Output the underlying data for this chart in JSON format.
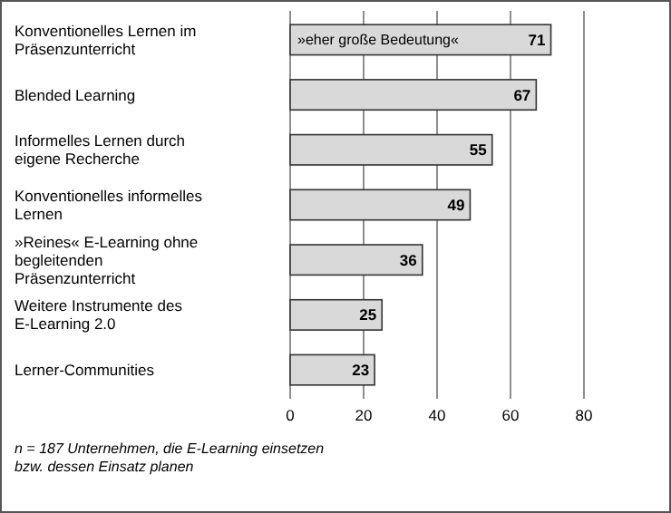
{
  "chart_data": {
    "type": "bar",
    "orientation": "horizontal",
    "categories": [
      "Konventionelles Lernen im Präsenzunterricht",
      "Blended Learning",
      "Informelles Lernen durch eigene Recherche",
      "Konventionelles informelles Lernen",
      "»Reines« E-Learning ohne begleitenden Präsenzunterricht",
      "Weitere Instrumente des E-Learning 2.0",
      "Lerner-Communities"
    ],
    "series": [
      {
        "name": "»eher große Bedeutung«",
        "color": "#d9d9d9",
        "values": [
          71,
          67,
          55,
          49,
          36,
          25,
          23
        ]
      }
    ],
    "xlim": [
      0,
      80
    ],
    "xticks": [
      0,
      20,
      40,
      60,
      80
    ],
    "grid": "x",
    "data_labels": true,
    "annotations": [
      "n = 187 Unternehmen, die E-Learning einsetzen bzw. dessen Einsatz planen"
    ]
  }
}
